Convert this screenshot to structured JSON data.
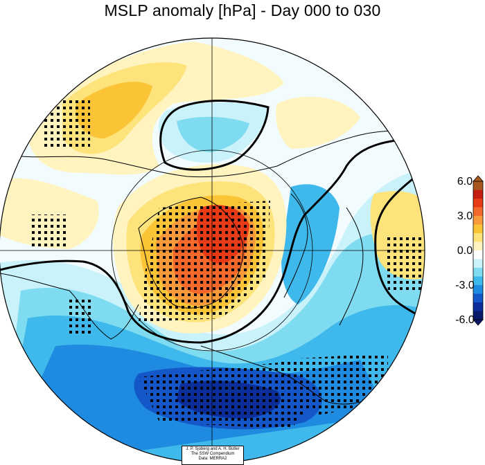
{
  "title": "MSLP anomaly [hPa] - Day 000 to 030",
  "colorbar": {
    "ticks": [
      "6.0",
      "3.0",
      "0.0",
      "-3.0",
      "-6.0"
    ],
    "colors_top_to_bottom": [
      "#a8571e",
      "#c41e10",
      "#e83a17",
      "#f4692b",
      "#f99a3a",
      "#fbc437",
      "#fde37a",
      "#fff3c0",
      "#ffffff",
      "#c9f2fb",
      "#7fdcf0",
      "#3fb9eb",
      "#1e8be0",
      "#1457c8",
      "#0b2e9a",
      "#0a1a6a"
    ]
  },
  "credit": [
    "J. P. Sjoberg and A. H. Butler",
    "The SSW Compendium",
    "Data: MERRA2"
  ]
}
